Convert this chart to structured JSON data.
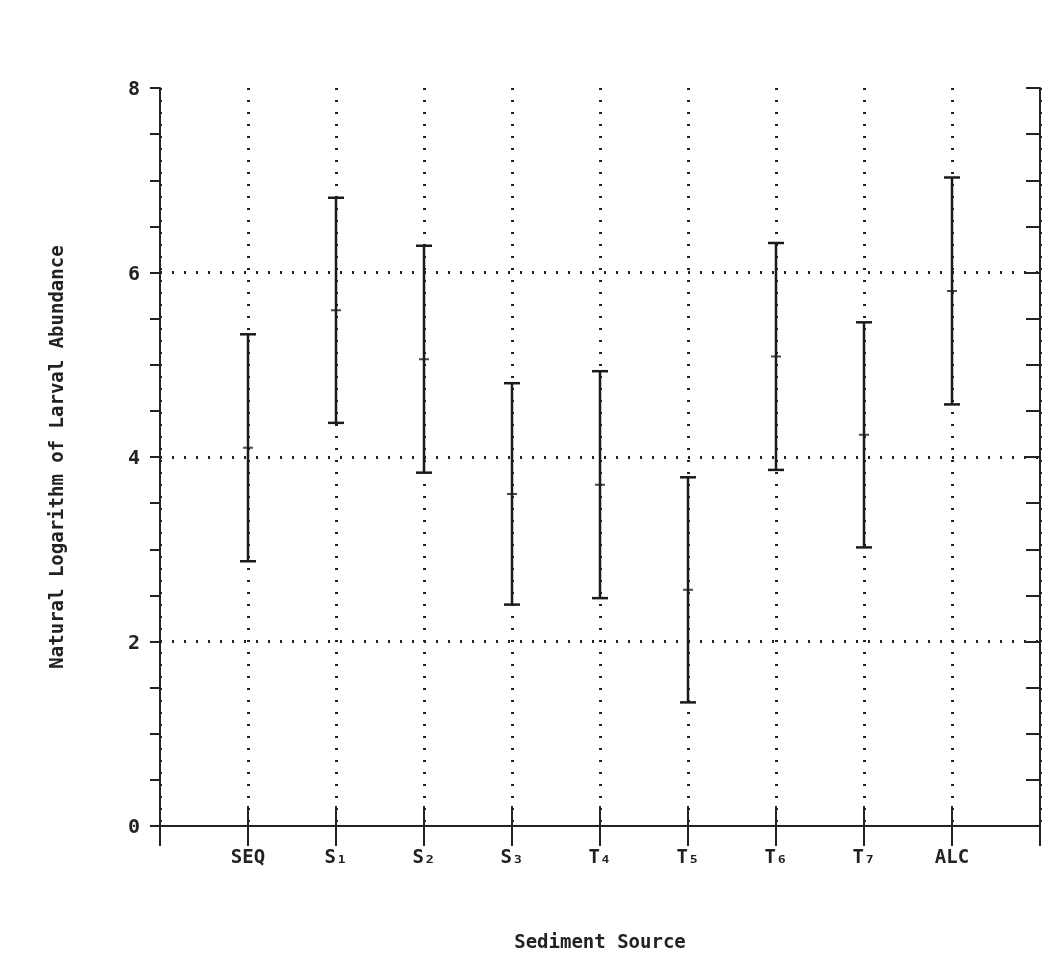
{
  "chart_data": {
    "type": "scatter",
    "xlabel": "Sediment Source",
    "ylabel": "Natural Logarithm of Larval Abundance",
    "categories": [
      "SEQ",
      "S₁",
      "S₂",
      "S₃",
      "T₄",
      "T₅",
      "T₆",
      "T₇",
      "ALC"
    ],
    "values": [
      4.1,
      5.59,
      5.06,
      3.6,
      3.7,
      2.56,
      5.09,
      4.24,
      5.8
    ],
    "errors": [
      1.23,
      1.22,
      1.23,
      1.2,
      1.23,
      1.22,
      1.23,
      1.22,
      1.23
    ],
    "color": "#1a1a1a",
    "marker": "cross",
    "ylim": [
      0,
      8
    ],
    "yticks": [
      0,
      {
        "value": 0.5,
        "label": null
      },
      {
        "value": 1,
        "label": null
      },
      {
        "value": 1.5,
        "label": null
      },
      2,
      {
        "value": 2.5,
        "label": null
      },
      {
        "value": 3,
        "label": null
      },
      {
        "value": 3.5,
        "label": null
      },
      4,
      {
        "value": 4.5,
        "label": null
      },
      {
        "value": 5,
        "label": null
      },
      {
        "value": 5.5,
        "label": null
      },
      6,
      {
        "value": 6.5,
        "label": null
      },
      {
        "value": 7,
        "label": null
      },
      {
        "value": 7.5,
        "label": null
      },
      8
    ],
    "grid": true
  }
}
